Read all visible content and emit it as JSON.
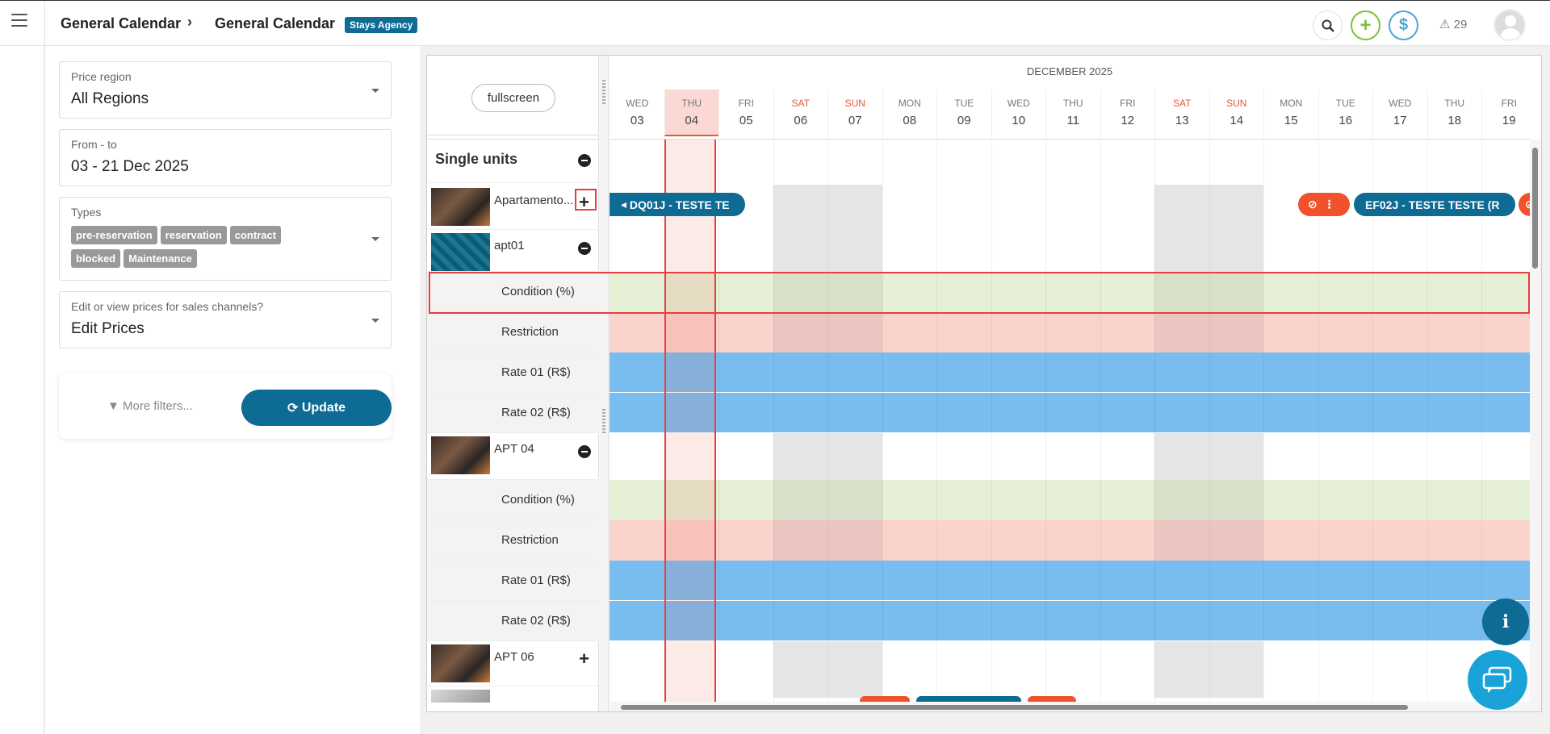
{
  "header": {
    "breadcrumb": [
      "General Calendar",
      "General Calendar"
    ],
    "separator": "›",
    "agency_badge": "Stays Agency",
    "alerts_count": "29",
    "icons": [
      "menu-icon",
      "search-icon",
      "plus-icon",
      "dollar-icon",
      "warning-icon",
      "avatar"
    ]
  },
  "filters": {
    "price_region": {
      "label": "Price region",
      "value": "All Regions"
    },
    "date_range": {
      "label": "From - to",
      "value": "03 - 21 Dec 2025"
    },
    "types": {
      "label": "Types",
      "tags": [
        "pre-reservation",
        "reservation",
        "contract",
        "blocked",
        "Maintenance"
      ]
    },
    "sales_channels": {
      "label": "Edit or view prices for sales channels?",
      "value": "Edit Prices"
    },
    "more_filters": "More filters...",
    "update": "Update"
  },
  "calendar": {
    "fullscreen": "fullscreen",
    "month": "DECEMBER 2025",
    "days": [
      {
        "name": "WED",
        "date": "03"
      },
      {
        "name": "THU",
        "date": "04"
      },
      {
        "name": "FRI",
        "date": "05"
      },
      {
        "name": "SAT",
        "date": "06"
      },
      {
        "name": "SUN",
        "date": "07"
      },
      {
        "name": "MON",
        "date": "08"
      },
      {
        "name": "TUE",
        "date": "09"
      },
      {
        "name": "WED",
        "date": "10"
      },
      {
        "name": "THU",
        "date": "11"
      },
      {
        "name": "FRI",
        "date": "12"
      },
      {
        "name": "SAT",
        "date": "13"
      },
      {
        "name": "SUN",
        "date": "14"
      },
      {
        "name": "MON",
        "date": "15"
      },
      {
        "name": "TUE",
        "date": "16"
      },
      {
        "name": "WED",
        "date": "17"
      },
      {
        "name": "THU",
        "date": "18"
      },
      {
        "name": "FRI",
        "date": "19"
      }
    ],
    "section_title": "Single units",
    "rows": {
      "unit1": "Apartamento...",
      "unit2": "apt01",
      "condition": "Condition (%)",
      "restriction": "Restriction",
      "rate1": "Rate 01 (R$)",
      "rate2": "Rate 02 (R$)",
      "unit3": "APT 04",
      "unit4": "APT 06"
    },
    "reservations": {
      "r1": "DQ01J - TESTE TE",
      "r2": "EF02J - TESTE TESTE (R"
    }
  },
  "colors": {
    "brand": "#0d6b94",
    "accent": "#e53f3f",
    "weekend": "#e8553a"
  }
}
